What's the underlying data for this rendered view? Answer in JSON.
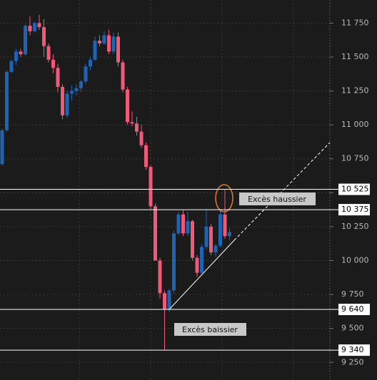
{
  "chart_data": {
    "type": "candlestick",
    "ylim": [
      9120,
      11920
    ],
    "yticks": [
      {
        "value": 9250,
        "label": "9 250"
      },
      {
        "value": 9500,
        "label": "9 500"
      },
      {
        "value": 9750,
        "label": "9 750"
      },
      {
        "value": 10000,
        "label": "10 000"
      },
      {
        "value": 10250,
        "label": "10 250"
      },
      {
        "value": 10500,
        "label": "10 500"
      },
      {
        "value": 10750,
        "label": "10 750"
      },
      {
        "value": 11000,
        "label": "11 000"
      },
      {
        "value": 11250,
        "label": "11 250"
      },
      {
        "value": 11500,
        "label": "11 500"
      },
      {
        "value": 11750,
        "label": "11 750"
      }
    ],
    "grid": true,
    "up_color": "#1e64b4",
    "down_color": "#ee5a78",
    "open": [
      10710,
      10960,
      11390,
      11470,
      11540,
      11520,
      11730,
      11690,
      11750,
      11720,
      11580,
      11480,
      11420,
      11280,
      11070,
      11230,
      11250,
      11270,
      11320,
      11430,
      11480,
      11620,
      11600,
      11660,
      11540,
      11650,
      11460,
      11260,
      11020,
      11010,
      10950,
      10850,
      10690,
      10400,
      10000,
      9760,
      9640,
      9780,
      10200,
      10340,
      10200,
      10290,
      10020,
      9910,
      10100,
      10250,
      10060,
      10110,
      10340,
      10180
    ],
    "high": [
      10970,
      11400,
      11480,
      11560,
      11560,
      11740,
      11800,
      11760,
      11810,
      11780,
      11600,
      11520,
      11450,
      11300,
      11250,
      11290,
      11300,
      11330,
      11450,
      11500,
      11650,
      11660,
      11690,
      11700,
      11680,
      11680,
      11480,
      11280,
      11100,
      11060,
      11000,
      10870,
      10700,
      10420,
      10020,
      9780,
      9790,
      10220,
      10360,
      10370,
      10360,
      10300,
      10040,
      10120,
      10380,
      10270,
      10120,
      10380,
      10525,
      10240
    ],
    "low": [
      10700,
      10950,
      11380,
      11440,
      11500,
      11510,
      11660,
      11680,
      11700,
      11500,
      11460,
      11380,
      11240,
      11040,
      11050,
      11180,
      11220,
      11240,
      11300,
      11400,
      11470,
      11580,
      11590,
      11520,
      11520,
      11430,
      11240,
      11000,
      10990,
      10920,
      10830,
      10670,
      10380,
      10000,
      9720,
      9340,
      9620,
      9760,
      10190,
      10180,
      10180,
      10000,
      9880,
      9900,
      10080,
      10040,
      10030,
      10100,
      10160,
      10150
    ],
    "close": [
      10960,
      11390,
      11470,
      11540,
      11520,
      11730,
      11690,
      11750,
      11720,
      11580,
      11480,
      11420,
      11280,
      11070,
      11230,
      11250,
      11270,
      11320,
      11430,
      11480,
      11620,
      11600,
      11660,
      11540,
      11650,
      11460,
      11260,
      11020,
      11010,
      10950,
      10850,
      10690,
      10400,
      10000,
      9760,
      9640,
      9780,
      10200,
      10340,
      10200,
      10290,
      10020,
      9910,
      10100,
      10250,
      10060,
      10110,
      10340,
      10180,
      10210
    ],
    "levels": [
      {
        "value": 10525,
        "label": "10 525"
      },
      {
        "value": 10375,
        "label": "10 375"
      },
      {
        "value": 9640,
        "label": "9 640"
      },
      {
        "value": 9340,
        "label": "9 340"
      }
    ],
    "annotations": [
      "Excès haussier",
      "Excès baissier"
    ]
  }
}
